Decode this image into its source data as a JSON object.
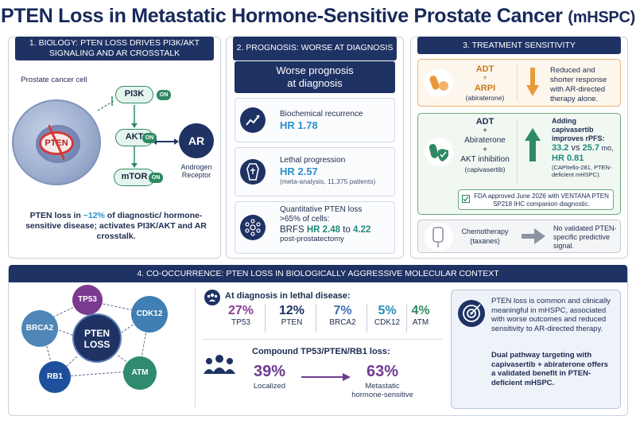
{
  "title": {
    "main": "PTEN Loss in Metastatic Hormone-Sensitive Prostate Cancer",
    "suffix": "(mHSPC)"
  },
  "panel1": {
    "header_line1": "1. BIOLOGY: PTEN LOSS DRIVES PI3K/AKT",
    "header_line2": "SIGNALING AND AR CROSSTALK",
    "cell_label": "Prostate cancer cell",
    "pten_label": "PTEN",
    "nodes": {
      "pi3k": "PI3K",
      "akt": "AKT",
      "mtor": "mTOR"
    },
    "on_badge": "ON",
    "ar_label": "AR",
    "ar_caption": "Androgen Receptor",
    "text_part1": "PTEN loss in ",
    "text_highlight": "~12%",
    "text_part2": " of diagnostic/ hormone-sensitive disease; activates PI3K/AKT and AR crosstalk."
  },
  "panel2": {
    "header": "2. PROGNOSIS: WORSE AT DIAGNOSIS",
    "box_line1": "Worse prognosis",
    "box_line2": "at diagnosis",
    "rows": [
      {
        "label": "Biochemical recurrence",
        "hr": "HR 1.78",
        "icon": "line-chart-icon"
      },
      {
        "label": "Lethal progression",
        "hr": "HR 2.57",
        "note": "(meta-analysis, 11,375 patients)",
        "icon": "coffin-icon"
      },
      {
        "label_line1": "Quantitative PTEN loss",
        "label_line2": ">65% of cells:",
        "prefix": "BRFS ",
        "hr_a": "HR 2.48",
        "mid": " to ",
        "hr_b": "4.22",
        "note": "post-prostatectomy",
        "icon": "cells-icon"
      }
    ]
  },
  "panel3": {
    "header": "3. TREATMENT SENSITIVITY",
    "box1": {
      "line1": "ADT",
      "plus": "+",
      "line2": "ARPI",
      "line3": "(abiraterone)",
      "desc": "Reduced and shorter response with AR-directed therapy alone."
    },
    "box2": {
      "line1": "ADT",
      "plus1": "+",
      "line2": "Abiraterone",
      "plus2": "+",
      "line3": "AKT inhibition",
      "line4": "(capivasertib)",
      "desc1": "Adding capivasertib improves rPFS:",
      "val": "33.2",
      "vs": " vs ",
      "val2": "25.7",
      "unit": " mo,",
      "hr": "HR 0.81",
      "note": "(CAPItello-281, PTEN-deficient mHSPC).",
      "fda": "FDA approved June 2026 with VENTANA PTEN SP218 IHC companion diagnostic."
    },
    "box3": {
      "line1": "Chemotherapy",
      "line2": "(taxanes)",
      "desc": "No validated PTEN-specific predictive signal."
    }
  },
  "panel4": {
    "header": "4. CO-OCCURRENCE: PTEN LOSS IN BIOLOGICALLY AGGRESSIVE MOLECULAR CONTEXT",
    "genes": {
      "tp53": "TP53",
      "brca2": "BRCA2",
      "cdk12": "CDK12",
      "rb1": "RB1",
      "atm": "ATM",
      "center_line1": "PTEN",
      "center_line2": "LOSS"
    },
    "diag_title": "At diagnosis in lethal disease:",
    "pcts": [
      {
        "val": "27%",
        "label": "TP53",
        "color": "#8a3f8f"
      },
      {
        "val": "12%",
        "label": "PTEN",
        "color": "#1f3264"
      },
      {
        "val": "7%",
        "label": "BRCA2",
        "color": "#3d6fb0"
      },
      {
        "val": "5%",
        "label": "CDK12",
        "color": "#2a8fb8"
      },
      {
        "val": "4%",
        "label": "ATM",
        "color": "#2f8a63"
      }
    ],
    "comp_title": "Compound TP53/PTEN/RB1 loss:",
    "comp_left_val": "39%",
    "comp_left_lbl": "Localized",
    "comp_right_val": "63%",
    "comp_right_lbl1": "Metastatic",
    "comp_right_lbl2": "hormone-sensitive",
    "summary1": "PTEN loss is common and clinically meaningful in mHSPC, associated with worse outcomes and reduced sensitivity to AR-directed therapy.",
    "summary2": "Dual pathway targeting with capivasertib + abiraterone offers a validated benefit in PTEN-deficient mHSPC."
  }
}
